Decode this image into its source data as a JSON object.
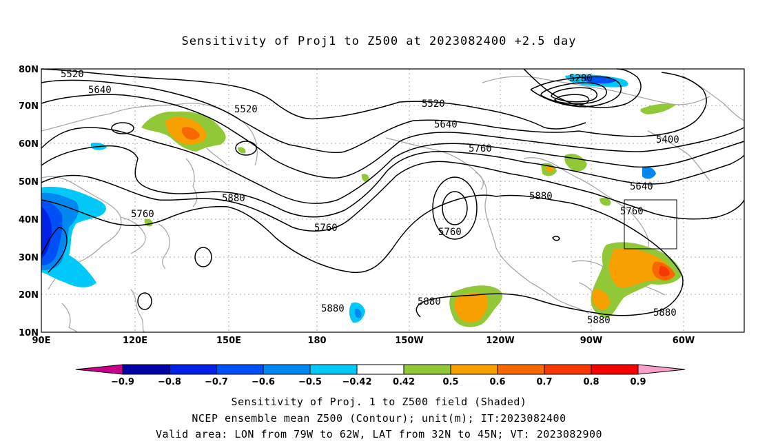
{
  "title": "Sensitivity of Proj1 to Z500 at 2023082400 +2.5 day",
  "captions": {
    "line1": "Sensitivity of Proj. 1 to Z500 field (Shaded)",
    "line2": "NCEP ensemble mean Z500 (Contour); unit(m); IT:2023082400",
    "line3": "Valid area: LON from 79W to 62W, LAT from 32N to 45N; VT: 2023082900"
  },
  "map": {
    "lat_ticks": [
      "80N",
      "70N",
      "60N",
      "50N",
      "40N",
      "30N",
      "20N",
      "10N"
    ],
    "lon_ticks": [
      "90E",
      "120E",
      "150E",
      "180",
      "150W",
      "120W",
      "90W",
      "60W"
    ],
    "contour_labels": [
      "5520",
      "5640",
      "5520",
      "5520",
      "5640",
      "5760",
      "5280",
      "5400",
      "5640",
      "5760",
      "5880",
      "5760",
      "5880",
      "5760",
      "5880",
      "5880",
      "5880",
      "5880"
    ],
    "valid_box": {
      "lon_from": "79W",
      "lon_to": "62W",
      "lat_from": "32N",
      "lat_to": "45N"
    }
  },
  "colorbar": {
    "labels": [
      "-0.9",
      "-0.8",
      "-0.7",
      "-0.6",
      "-0.5",
      "-0.42",
      "0.42",
      "0.5",
      "0.6",
      "0.7",
      "0.8",
      "0.9"
    ],
    "colors": [
      "#0000a8",
      "#0020e8",
      "#0050f8",
      "#0088f0",
      "#00c8f8",
      "#ffffff",
      "#90c838",
      "#f8a000",
      "#f86800",
      "#f83800",
      "#f80000"
    ],
    "low_end_color": "#c8008c",
    "high_end_color": "#f8a0c8"
  }
}
